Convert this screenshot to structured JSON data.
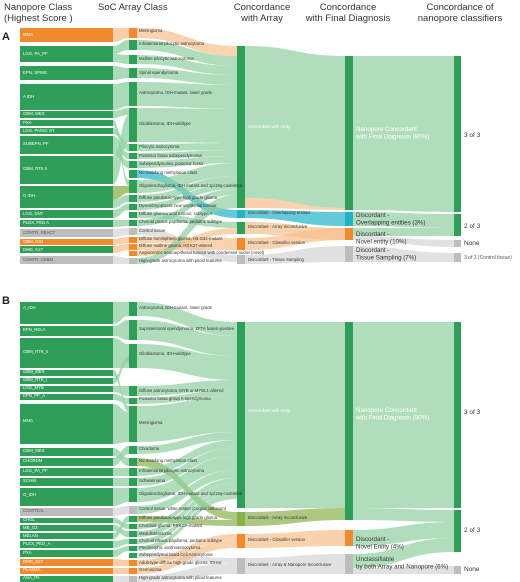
{
  "headers": {
    "col1": [
      "Nanopore Class",
      "(Highest Score )"
    ],
    "col2": [
      "SoC Array Class"
    ],
    "col3": [
      "Concordance",
      "with Array"
    ],
    "col4": [
      "Concordance",
      "with Final Diagnosis"
    ],
    "col5": [
      "Concordance of",
      "nanopore classifiers"
    ]
  },
  "panelA": {
    "label": "A",
    "nano": [
      "MNG",
      "LGG, PA_PF",
      "EPN, SPINE",
      "A IDH",
      "GBM, MES",
      "PXA",
      "LGG, PA/GG ST",
      "SUBEPN, PF",
      "GBM, RTK II",
      "O IDH",
      "LGG, DNT",
      "PLEX, PED A",
      "CONTR, REACT",
      "GBM, G34",
      "DMG, K27",
      "CONTR, CEBM"
    ],
    "soc": [
      "Meningioma",
      "Infratentorial pilocytic astrocytoma",
      "Midline pilocytic astrocytoma",
      "Spinal ependymoma",
      "Astrocytoma, IDH-mutant, lower grade",
      "Glioblastoma, IDH-wildtype",
      "Pilocytic astrocytoma",
      "Posterior fossa subependymoma",
      "Subependymoma, posterior fossa",
      "No matching methylation class",
      "Oligodendroglioma, IDH-mutant and 1p/19q-codeleted",
      "Diffuse paediatric-type high grade glioma",
      "Dysembryoplastic neuroepithelial tumour",
      "Diffuse glioneuronal tumour, subtype A",
      "Choroid plexus papilloma, pediatric subtype",
      "Control tissue",
      "Diffuse hemispheric glioma, H3 G34-mutant",
      "Diffuse midline glioma, H3 K27-altered",
      "Angiocentric neuroepithelial tumour with condensed nuclei (novel)",
      "High-grade astrocytoma with piloid features"
    ],
    "array": [
      "Concordant with Array",
      "Discordant - Overlapping entities",
      "Discordant - Array Inconclusive",
      "Discordant - Classifier version",
      "Discordant - Tissue Sampling"
    ],
    "diag": [
      "Nanopore Concordant with Final Diagnosis (80%)",
      "Discordant - Overlapping entities (3%)",
      "Discordant - Novel entity (10%)",
      "Discordant - Tissue Sampling (7%)"
    ],
    "final": [
      "3 of 3",
      "2 of 3",
      "None",
      "3 of 3 (Control tissue)"
    ]
  },
  "panelB": {
    "label": "B",
    "nano": [
      "A_IDH",
      "EPN_RELA",
      "GBM_RTK_II",
      "GBM_MES",
      "GBM_RTK_I",
      "LGG_MYB",
      "EPN_PF_A",
      "MNG",
      "GBM_MES",
      "CHORDM",
      "LGG_PA_PF",
      "SCHW",
      "O_IDH",
      "CONTROL",
      "CHGL",
      "MB_G3",
      "MELAN",
      "PLEX_PED_A",
      "PXA",
      "DMG_K27",
      "PLASMA",
      "ANA_PA"
    ],
    "soc": [
      "Astrocytoma, IDH-mutant, lower grade",
      "Supratentorial ependymoma, ZFTA fusion-positive",
      "Glioblastoma, IDH-wildtype",
      "Diffuse astrocytoma, MYB or MYBL1-altered",
      "Posterior fossa group A ependymoma",
      "Meningioma",
      "Chordoma",
      "No matching methylation class",
      "Infratentorial pilocytic astrocytoma",
      "Schwannoma",
      "Oligodendroglioma, IDH-mutant and 1p/19q-codeleted",
      "Control tissue, white matter (corpus callosum)",
      "Diffuse paediatric-type high grade glioma",
      "Chordoid glioma, PRKCA-mutant",
      "Medulloblastoma",
      "Choroid plexus papilloma, pediatric subtype",
      "Pleomorphic xanthoastrocytoma",
      "Subependymal Giant Cell Astrocytoma",
      "Adult-type diffuse high grade glioma, IDHwt",
      "Germinoma",
      "High-grade astrocytoma with piloid features"
    ],
    "array": [
      "Concordant with Array",
      "Discordant - Array Inconclusive",
      "Discordant - Classifier version",
      "Discordant - Array & Nanopore Inconclusive"
    ],
    "diag": [
      "Nanopore Concordant with Final Diagnosis (90%)",
      "Discordant - Novel Entity (4%)",
      "Unclassifiable by both Array and Nanopore (6%)"
    ],
    "final": [
      "3 of 3",
      "2 of 3",
      "None"
    ]
  },
  "colors": {
    "green": "#2e9e58",
    "orange": "#f08a2c",
    "teal": "#22b3c9",
    "grey": "#bdbdbd",
    "olive": "#8ab04a",
    "flow_green": "#8fd0a1",
    "flow_orange": "#f7bf8c"
  }
}
